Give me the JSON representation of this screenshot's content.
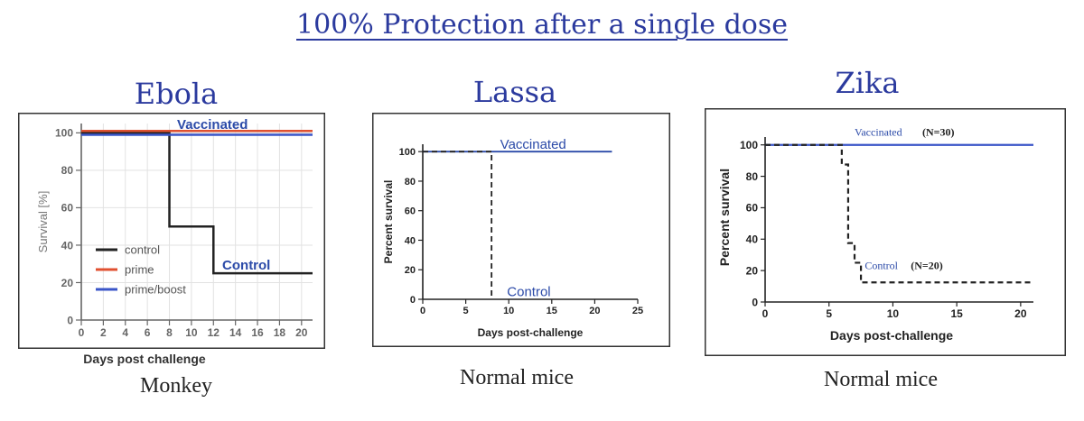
{
  "page": {
    "title": "100% Protection after a single dose"
  },
  "chart_data": [
    {
      "type": "line",
      "panel_title": "Ebola",
      "caption": "Monkey",
      "xlabel": "Days post challenge",
      "ylabel": "Survival [%]",
      "xlim": [
        0,
        21
      ],
      "ylim": [
        0,
        105
      ],
      "xticks": [
        0,
        2,
        4,
        6,
        8,
        10,
        12,
        14,
        16,
        18,
        20
      ],
      "yticks": [
        0,
        20,
        40,
        60,
        80,
        100
      ],
      "grid": true,
      "legend": {
        "placement": "bottom-left",
        "entries": [
          "control",
          "prime",
          "prime/boost"
        ]
      },
      "annotations": [
        {
          "text": "Vaccinated",
          "x": 8.7,
          "y": 102,
          "color": "#2b4aa8"
        },
        {
          "text": "Control",
          "x": 12.8,
          "y": 27,
          "color": "#2b4aa8"
        }
      ],
      "series": [
        {
          "name": "control",
          "color": "#222222",
          "dash": false,
          "step": true,
          "x": [
            0,
            8,
            12,
            21
          ],
          "y": [
            100,
            50,
            25,
            25
          ]
        },
        {
          "name": "prime",
          "color": "#e05030",
          "dash": false,
          "step": true,
          "x": [
            0,
            21
          ],
          "y": [
            101,
            101
          ]
        },
        {
          "name": "prime/boost",
          "color": "#3a55c8",
          "dash": false,
          "step": true,
          "x": [
            0,
            21
          ],
          "y": [
            99,
            99
          ]
        }
      ]
    },
    {
      "type": "line",
      "panel_title": "Lassa",
      "caption": "Normal mice",
      "xlabel": "Days post-challenge",
      "ylabel": "Percent survival",
      "xlim": [
        0,
        25
      ],
      "ylim": [
        0,
        105
      ],
      "xticks": [
        0,
        5,
        10,
        15,
        20,
        25
      ],
      "yticks": [
        0,
        20,
        40,
        60,
        80,
        100
      ],
      "grid": false,
      "annotations": [
        {
          "text": "Vaccinated",
          "x": 9,
          "y": 102,
          "color": "#2b4aa8"
        },
        {
          "text": "Control",
          "x": 9.8,
          "y": 2,
          "color": "#2b4aa8"
        }
      ],
      "series": [
        {
          "color": "#2b4aa8",
          "dash": false,
          "step": true,
          "x": [
            0,
            22
          ],
          "y": [
            100,
            100
          ]
        },
        {
          "color": "#222222",
          "dash": true,
          "step": true,
          "x": [
            0,
            8,
            8
          ],
          "y": [
            100,
            100,
            0
          ]
        }
      ]
    },
    {
      "type": "line",
      "panel_title": "Zika",
      "caption": "Normal mice",
      "xlabel": "Days post-challenge",
      "ylabel": "Percent survival",
      "xlim": [
        0,
        21
      ],
      "ylim": [
        0,
        105
      ],
      "xticks": [
        0,
        5,
        10,
        15,
        20
      ],
      "yticks": [
        0,
        20,
        40,
        60,
        80,
        100
      ],
      "grid": false,
      "annotations": [
        {
          "text": "Vaccinated",
          "x": 7,
          "y": 106,
          "color": "#2b4aa8"
        },
        {
          "text": "(N=30)",
          "x": 12.3,
          "y": 106,
          "color": "#222222"
        },
        {
          "text": "Control",
          "x": 7.8,
          "y": 21,
          "color": "#2b4aa8"
        },
        {
          "text": "(N=20)",
          "x": 11.4,
          "y": 21,
          "color": "#222222"
        }
      ],
      "series": [
        {
          "color": "#3a55c8",
          "dash": false,
          "step": true,
          "x": [
            0,
            21
          ],
          "y": [
            100,
            100
          ]
        },
        {
          "color": "#222222",
          "dash": true,
          "step": true,
          "x": [
            0,
            6,
            6.5,
            7,
            7.5,
            21
          ],
          "y": [
            100,
            87.5,
            37.5,
            25,
            12.5,
            12.5
          ]
        }
      ]
    }
  ]
}
